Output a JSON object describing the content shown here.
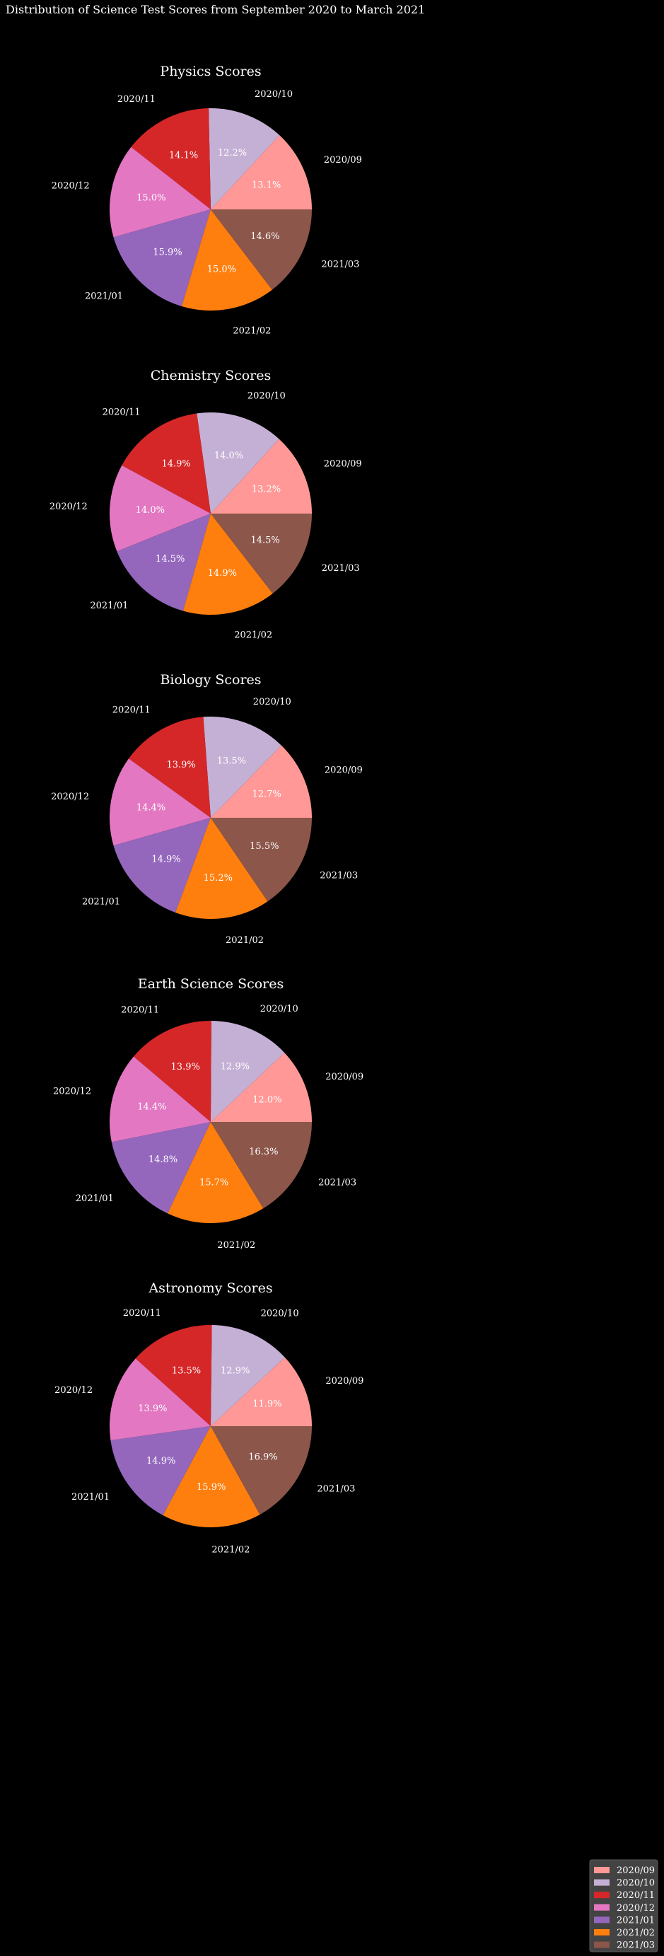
{
  "chart_data": {
    "type": "pie",
    "title": "Distribution of Science Test Scores from September 2020 to March 2021",
    "categories": [
      "2020/09",
      "2020/10",
      "2020/11",
      "2020/12",
      "2021/01",
      "2021/02",
      "2021/03"
    ],
    "colors": [
      "#ff9896",
      "#c5b0d5",
      "#d62728",
      "#e377c2",
      "#9467bd",
      "#ff7f0e",
      "#8c564b"
    ],
    "legend": {
      "location": "bottom-right",
      "entries": [
        "2020/09",
        "2020/10",
        "2020/11",
        "2020/12",
        "2021/01",
        "2021/02",
        "2021/03"
      ]
    },
    "charts": [
      {
        "title": "Physics Scores",
        "values": [
          13.1,
          12.2,
          14.1,
          15.0,
          15.9,
          15.0,
          14.6
        ],
        "percent_labels": [
          "13.1%",
          "12.2%",
          "14.1%",
          "15.0%",
          "15.9%",
          "15.0%",
          "14.6%"
        ]
      },
      {
        "title": "Chemistry Scores",
        "values": [
          13.2,
          14.0,
          14.9,
          14.0,
          14.5,
          14.9,
          14.5
        ],
        "percent_labels": [
          "13.2%",
          "14.0%",
          "14.9%",
          "14.0%",
          "14.5%",
          "14.9%",
          "14.5%"
        ]
      },
      {
        "title": "Biology Scores",
        "values": [
          12.7,
          13.5,
          13.9,
          14.4,
          14.9,
          15.2,
          15.5
        ],
        "percent_labels": [
          "12.7%",
          "13.5%",
          "13.9%",
          "14.4%",
          "14.9%",
          "15.2%",
          "15.5%"
        ]
      },
      {
        "title": "Earth Science Scores",
        "values": [
          12.0,
          12.9,
          13.9,
          14.4,
          14.8,
          15.7,
          16.3
        ],
        "percent_labels": [
          "12.0%",
          "12.9%",
          "13.9%",
          "14.4%",
          "14.8%",
          "15.7%",
          "16.3%"
        ]
      },
      {
        "title": "Astronomy Scores",
        "values": [
          11.9,
          12.9,
          13.5,
          13.9,
          14.9,
          15.9,
          16.9
        ],
        "percent_labels": [
          "11.9%",
          "12.9%",
          "13.5%",
          "13.9%",
          "14.9%",
          "15.9%",
          "16.9%"
        ]
      }
    ]
  }
}
